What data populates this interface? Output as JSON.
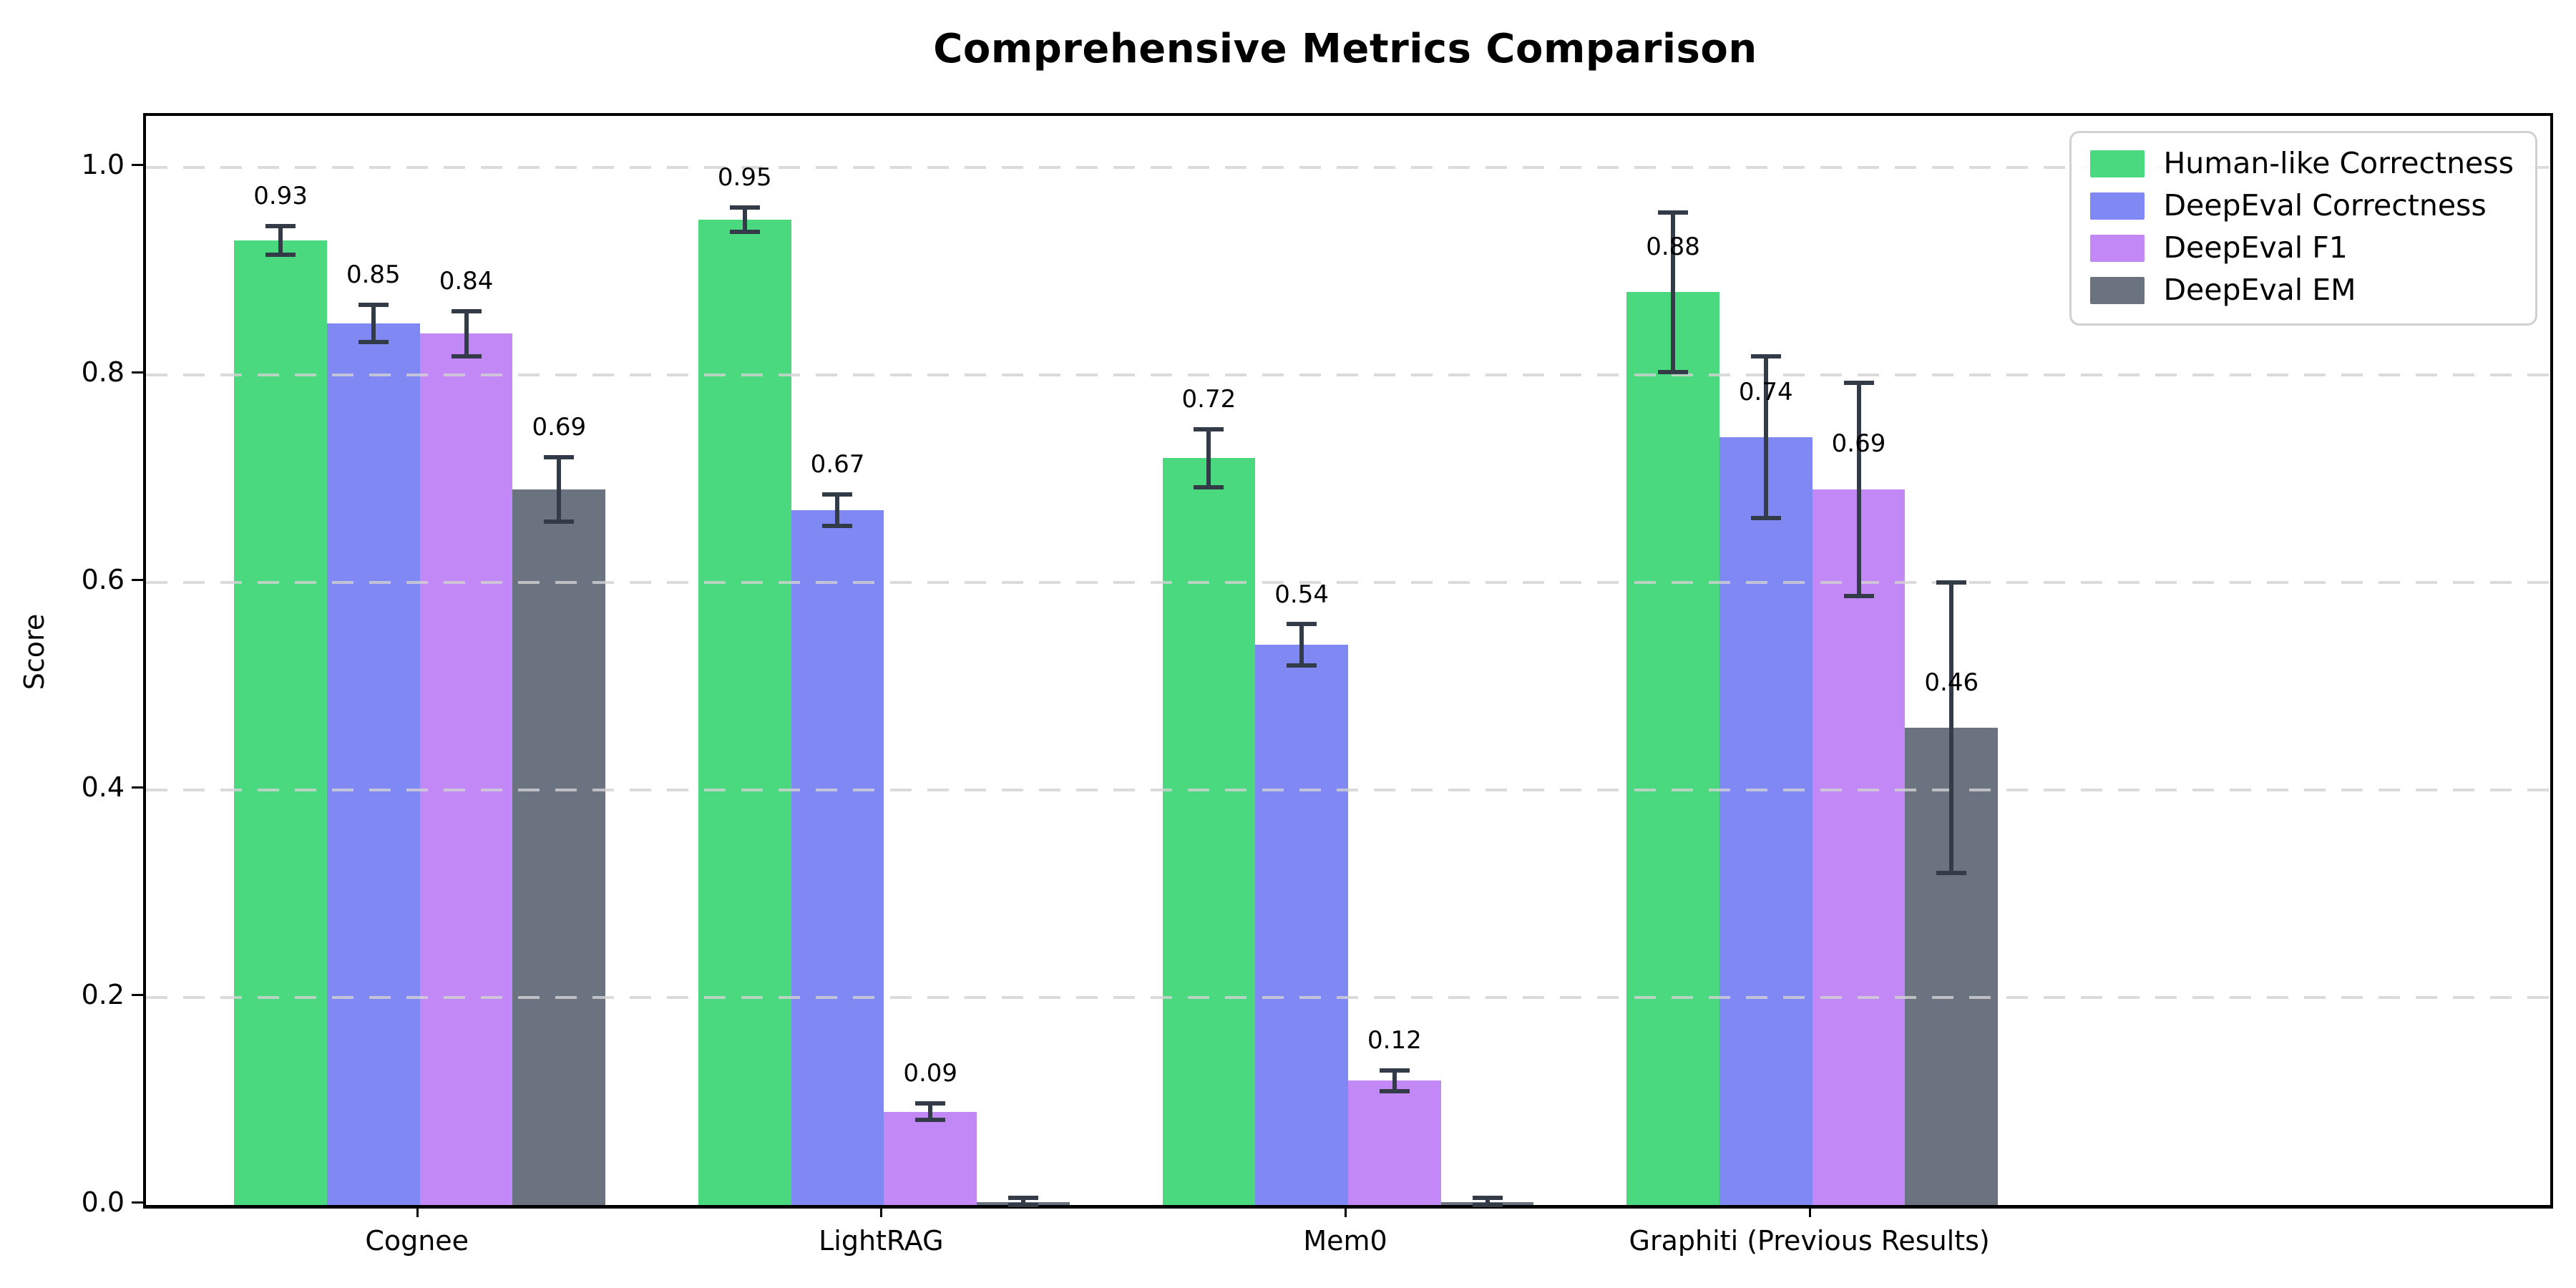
{
  "chart_data": {
    "type": "bar",
    "title": "Comprehensive Metrics Comparison",
    "xlabel": "",
    "ylabel": "Score",
    "categories": [
      "Cognee",
      "LightRAG",
      "Mem0",
      "Graphiti (Previous Results)"
    ],
    "series": [
      {
        "name": "Human-like Correctness",
        "color": "#4bd97f",
        "values": [
          0.93,
          0.95,
          0.72,
          0.88
        ],
        "errors": [
          0.014,
          0.012,
          0.028,
          0.077
        ],
        "value_labels": [
          "0.93",
          "0.95",
          "0.72",
          "0.88"
        ]
      },
      {
        "name": "DeepEval Correctness",
        "color": "#8089f3",
        "values": [
          0.85,
          0.67,
          0.54,
          0.74
        ],
        "errors": [
          0.018,
          0.015,
          0.02,
          0.078
        ],
        "value_labels": [
          "0.85",
          "0.67",
          "0.54",
          "0.74"
        ]
      },
      {
        "name": "DeepEval F1",
        "color": "#c289f6",
        "values": [
          0.84,
          0.09,
          0.12,
          0.69
        ],
        "errors": [
          0.022,
          0.008,
          0.01,
          0.103
        ],
        "value_labels": [
          "0.84",
          "0.09",
          "0.12",
          "0.69"
        ]
      },
      {
        "name": "DeepEval EM",
        "color": "#6b7280",
        "values": [
          0.69,
          0.003,
          0.003,
          0.46
        ],
        "errors": [
          0.031,
          0.004,
          0.004,
          0.14
        ],
        "value_labels": [
          "0.69",
          null,
          null,
          "0.46"
        ]
      }
    ],
    "yticks": [
      0.0,
      0.2,
      0.4,
      0.6,
      0.8,
      1.0
    ],
    "ytick_labels": [
      "0.0",
      "0.2",
      "0.4",
      "0.6",
      "0.8",
      "1.0"
    ],
    "ylim": [
      0,
      1.05
    ],
    "grid": {
      "show": true,
      "axis": "y",
      "style": "dashed",
      "color": "#d2d2d2",
      "over_bars": true
    },
    "legend": {
      "position": "upper right"
    },
    "bar_width_data_units": 0.2,
    "group_offsets": [
      -0.3,
      -0.1,
      0.1,
      0.3
    ],
    "error_bar_color": "#333b49",
    "spine_color": "#000000"
  }
}
